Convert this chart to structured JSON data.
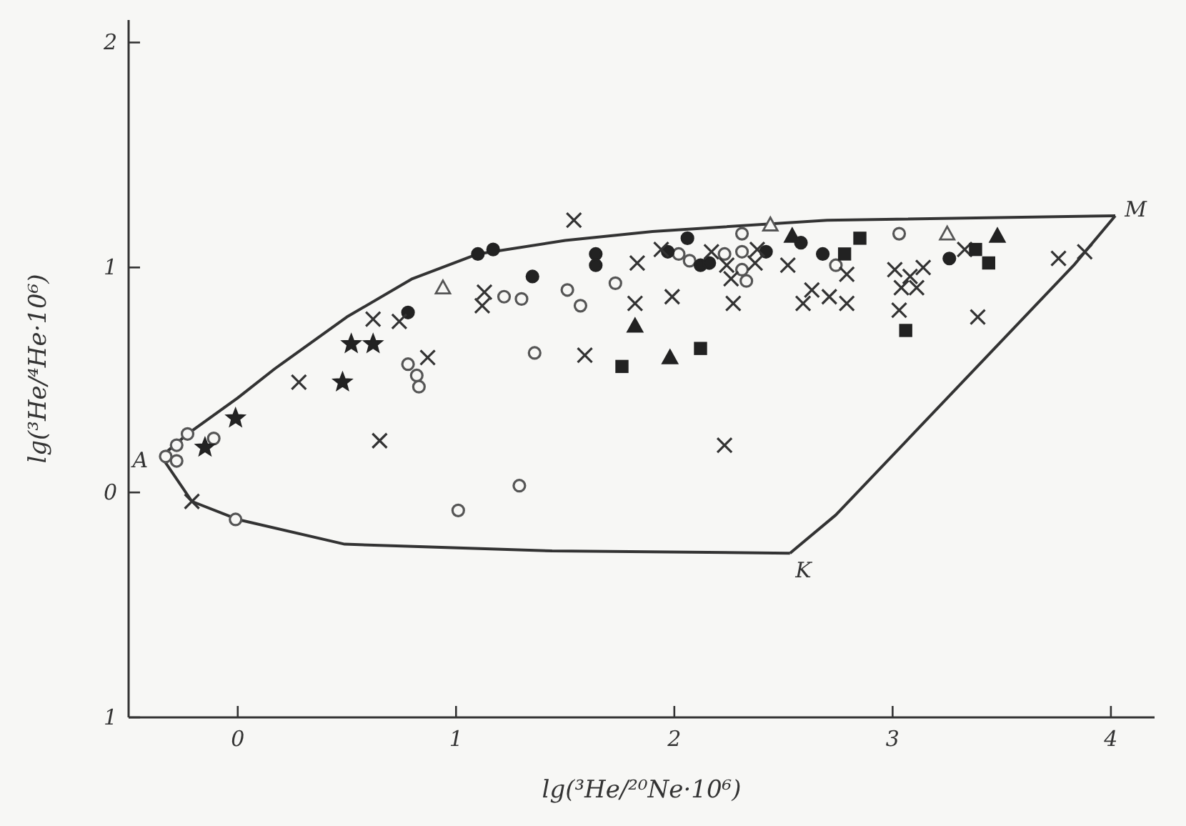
{
  "chart_data": {
    "type": "scatter",
    "xlabel": "lg(³He/²⁰Ne·10⁶)",
    "ylabel": "lg(³He/⁴He·10⁶)",
    "xlim": [
      -0.5,
      4.2
    ],
    "ylim": [
      -1,
      2.1
    ],
    "xticks": [
      0,
      1,
      2,
      3,
      4
    ],
    "yticks": [
      {
        "value": -1,
        "label": "1"
      },
      0,
      1,
      2
    ],
    "grid": false,
    "annotations": [
      {
        "text": "A",
        "x": -0.35,
        "y": 0.16
      },
      {
        "text": "M",
        "x": 4.02,
        "y": 1.23
      },
      {
        "text": "K",
        "x": 2.53,
        "y": -0.27
      }
    ],
    "series": [
      {
        "type": "line",
        "color": "#333333",
        "marker": "none",
        "line_style": "solid",
        "x": [
          -0.35,
          -0.23,
          0,
          0.17,
          0.5,
          0.8,
          1.1,
          1.5,
          1.9,
          2.7,
          4.02
        ],
        "values": [
          0.16,
          0.26,
          0.42,
          0.55,
          0.78,
          0.95,
          1.06,
          1.12,
          1.16,
          1.21,
          1.23
        ]
      },
      {
        "type": "line",
        "color": "#333333",
        "marker": "none",
        "line_style": "solid",
        "x": [
          2.53,
          2.74,
          3.83,
          4.02
        ],
        "values": [
          -0.27,
          -0.1,
          1.01,
          1.23
        ]
      },
      {
        "type": "line",
        "color": "#333333",
        "marker": "none",
        "line_style": "solid",
        "x": [
          -0.35,
          -0.21,
          0,
          0.49,
          1.44,
          2.53
        ],
        "values": [
          0.16,
          -0.04,
          -0.12,
          -0.23,
          -0.26,
          -0.27
        ]
      },
      {
        "color": "#555555",
        "marker": "circle",
        "x": [
          -0.23,
          -0.28,
          -0.11,
          -0.28,
          -0.33,
          0.78,
          0.82,
          0.83,
          1.01,
          -0.01,
          1.22,
          1.3,
          1.51,
          1.57,
          1.73,
          1.36,
          1.29,
          2.02,
          2.07,
          2.31,
          2.23,
          2.31,
          2.31,
          2.33,
          3.03,
          2.74
        ],
        "values": [
          0.26,
          0.21,
          0.24,
          0.14,
          0.16,
          0.57,
          0.52,
          0.47,
          -0.08,
          -0.12,
          0.87,
          0.86,
          0.9,
          0.83,
          0.93,
          0.62,
          0.03,
          1.06,
          1.03,
          1.15,
          1.06,
          1.07,
          0.99,
          0.94,
          1.15,
          1.01
        ]
      },
      {
        "color": "#222222",
        "marker": "circle",
        "x": [
          0.78,
          1.1,
          1.17,
          1.35,
          1.64,
          1.64,
          2.06,
          1.97,
          2.12,
          2.16,
          2.42,
          2.58,
          2.68,
          3.26
        ],
        "values": [
          0.8,
          1.06,
          1.08,
          0.96,
          1.06,
          1.01,
          1.13,
          1.07,
          1.01,
          1.02,
          1.07,
          1.11,
          1.06,
          1.04
        ]
      },
      {
        "color": "#333333",
        "marker": "cross",
        "x": [
          -0.21,
          0.28,
          0.65,
          0.62,
          0.74,
          0.87,
          1.13,
          1.12,
          1.54,
          1.83,
          1.82,
          1.99,
          2.27,
          1.59,
          2.23,
          1.94,
          2.17,
          2.24,
          2.26,
          2.38,
          2.37,
          2.52,
          2.63,
          2.59,
          2.71,
          2.79,
          2.79,
          3.01,
          3.08,
          3.14,
          3.04,
          3.11,
          3.03,
          3.39,
          3.33,
          3.76,
          3.88
        ],
        "values": [
          -0.04,
          0.49,
          0.23,
          0.77,
          0.76,
          0.6,
          0.89,
          0.83,
          1.21,
          1.02,
          0.84,
          0.87,
          0.84,
          0.61,
          0.21,
          1.08,
          1.07,
          1.01,
          0.95,
          1.08,
          1.02,
          1.01,
          0.9,
          0.84,
          0.87,
          0.84,
          0.97,
          0.99,
          0.96,
          1,
          0.91,
          0.91,
          0.81,
          0.78,
          1.08,
          1.04,
          1.07
        ]
      },
      {
        "color": "#222222",
        "marker": "star",
        "x": [
          -0.15,
          -0.01,
          0.48,
          0.52,
          0.62
        ],
        "values": [
          0.2,
          0.33,
          0.49,
          0.66,
          0.66
        ]
      },
      {
        "color": "#555555",
        "marker": "triangle",
        "x": [
          0.94,
          2.44,
          3.25
        ],
        "values": [
          0.91,
          1.19,
          1.15
        ]
      },
      {
        "color": "#222222",
        "marker": "triangle",
        "x": [
          1.82,
          1.98,
          2.54,
          3.48
        ],
        "values": [
          0.74,
          0.6,
          1.14,
          1.14
        ]
      },
      {
        "color": "#222222",
        "marker": "square",
        "x": [
          1.76,
          2.12,
          2.85,
          3.06,
          3.38,
          3.44,
          2.78
        ],
        "values": [
          0.56,
          0.64,
          1.13,
          0.72,
          1.08,
          1.02,
          1.06
        ]
      }
    ]
  }
}
